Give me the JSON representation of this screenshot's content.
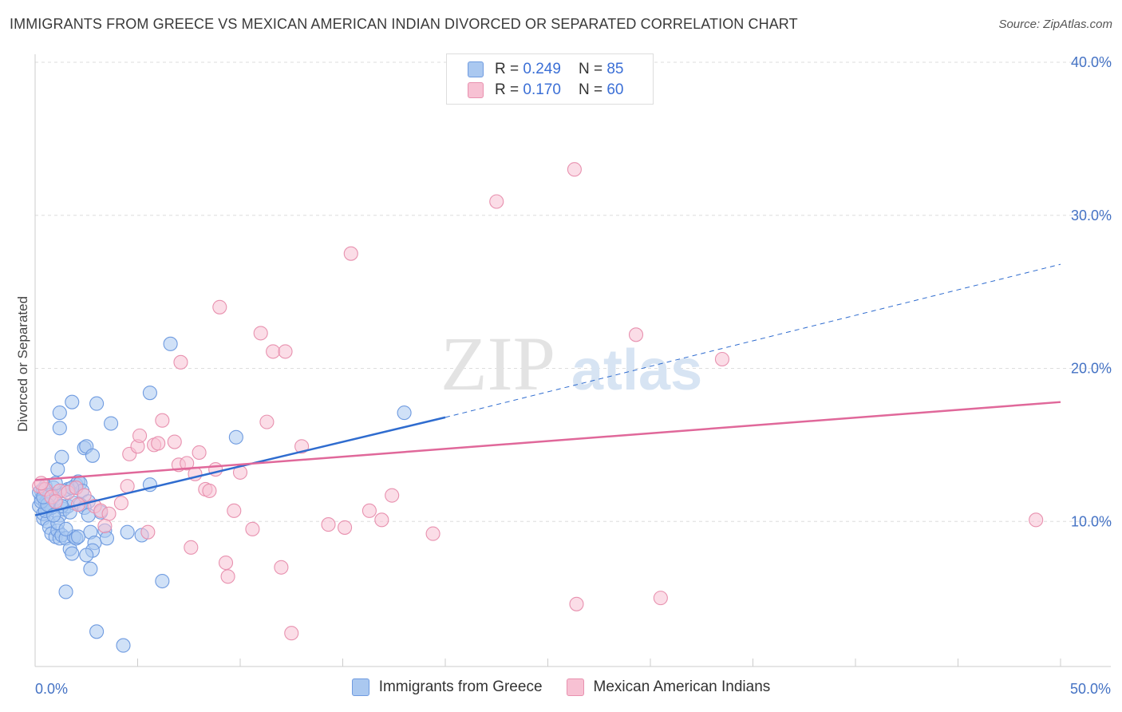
{
  "title": "IMMIGRANTS FROM GREECE VS MEXICAN AMERICAN INDIAN DIVORCED OR SEPARATED CORRELATION CHART",
  "source": "Source: ZipAtlas.com",
  "watermark": {
    "zip": "ZIP",
    "atlas": "atlas"
  },
  "legend": {
    "rows": [
      {
        "r_label": "R = ",
        "r_value": "0.249",
        "n_label": "N = ",
        "n_value": "85",
        "fill": "#aac8f0",
        "stroke": "#6f9be0"
      },
      {
        "r_label": "R = ",
        "r_value": "0.170",
        "n_label": "N = ",
        "n_value": "60",
        "fill": "#f7c1d3",
        "stroke": "#e891af"
      }
    ]
  },
  "chart_data": {
    "type": "scatter",
    "title": "IMMIGRANTS FROM GREECE VS MEXICAN AMERICAN INDIAN DIVORCED OR SEPARATED CORRELATION CHART",
    "xlabel": "",
    "ylabel": "Divorced or Separated",
    "xlim": [
      0,
      50
    ],
    "ylim": [
      0,
      40
    ],
    "x_ticks": [
      {
        "value": 0,
        "label": "0.0%"
      },
      {
        "value": 50,
        "label": "50.0%"
      }
    ],
    "y_ticks": [
      {
        "value": 10,
        "label": "10.0%"
      },
      {
        "value": 20,
        "label": "20.0%"
      },
      {
        "value": 30,
        "label": "30.0%"
      },
      {
        "value": 40,
        "label": "40.0%"
      }
    ],
    "legend_position": "top-center",
    "series": [
      {
        "name": "Immigrants from Greece",
        "color": "#6f9be0",
        "fill": "#aac8f0",
        "line_color": "#2f6ccf",
        "trend": {
          "x0": 0,
          "y0": 10.4,
          "x1": 20,
          "y1": 16.8,
          "dash_to_x": 50,
          "dash_to_y": 26.8
        },
        "points": [
          [
            0.2,
            11.0
          ],
          [
            0.3,
            11.5
          ],
          [
            0.4,
            10.2
          ],
          [
            0.5,
            11.2
          ],
          [
            0.6,
            10.8
          ],
          [
            0.7,
            11.0
          ],
          [
            0.3,
            12.0
          ],
          [
            0.5,
            12.3
          ],
          [
            0.8,
            11.8
          ],
          [
            0.9,
            11.6
          ],
          [
            0.4,
            10.5
          ],
          [
            0.6,
            10.0
          ],
          [
            0.7,
            9.6
          ],
          [
            0.8,
            9.2
          ],
          [
            1.0,
            9.0
          ],
          [
            1.1,
            9.4
          ],
          [
            1.2,
            8.9
          ],
          [
            1.3,
            9.1
          ],
          [
            1.5,
            8.9
          ],
          [
            1.7,
            8.2
          ],
          [
            1.8,
            7.9
          ],
          [
            1.9,
            9.0
          ],
          [
            2.0,
            8.9
          ],
          [
            1.2,
            10.4
          ],
          [
            1.4,
            10.8
          ],
          [
            1.6,
            11.0
          ],
          [
            1.9,
            11.2
          ],
          [
            2.0,
            12.4
          ],
          [
            2.1,
            12.6
          ],
          [
            2.2,
            12.5
          ],
          [
            1.1,
            13.4
          ],
          [
            1.3,
            14.2
          ],
          [
            1.2,
            16.1
          ],
          [
            1.2,
            17.1
          ],
          [
            1.8,
            17.8
          ],
          [
            2.4,
            14.8
          ],
          [
            2.5,
            14.9
          ],
          [
            2.8,
            14.3
          ],
          [
            3.0,
            17.7
          ],
          [
            3.7,
            16.4
          ],
          [
            2.3,
            12.0
          ],
          [
            2.6,
            11.3
          ],
          [
            3.2,
            10.6
          ],
          [
            2.7,
            9.3
          ],
          [
            2.9,
            8.6
          ],
          [
            2.8,
            8.1
          ],
          [
            3.4,
            9.4
          ],
          [
            3.5,
            8.9
          ],
          [
            2.5,
            7.8
          ],
          [
            2.7,
            6.9
          ],
          [
            1.5,
            5.4
          ],
          [
            3.0,
            2.8
          ],
          [
            4.3,
            1.9
          ],
          [
            4.5,
            9.3
          ],
          [
            5.2,
            9.1
          ],
          [
            5.6,
            12.4
          ],
          [
            5.6,
            18.4
          ],
          [
            6.2,
            6.1
          ],
          [
            6.6,
            21.6
          ],
          [
            9.8,
            15.5
          ],
          [
            18.0,
            17.1
          ],
          [
            0.2,
            11.9
          ],
          [
            0.4,
            12.1
          ],
          [
            0.6,
            11.4
          ],
          [
            0.8,
            10.9
          ],
          [
            1.0,
            11.3
          ],
          [
            1.6,
            12.1
          ],
          [
            2.2,
            11.1
          ],
          [
            1.4,
            12.0
          ],
          [
            0.9,
            12.2
          ],
          [
            0.5,
            10.7
          ],
          [
            0.7,
            11.7
          ],
          [
            1.3,
            11.0
          ],
          [
            1.7,
            10.6
          ],
          [
            2.4,
            10.9
          ],
          [
            0.3,
            11.3
          ],
          [
            0.6,
            11.1
          ],
          [
            1.1,
            9.9
          ],
          [
            1.5,
            9.5
          ],
          [
            2.1,
            9.0
          ],
          [
            0.9,
            10.4
          ],
          [
            1.8,
            12.2
          ],
          [
            2.6,
            10.4
          ],
          [
            0.4,
            11.6
          ],
          [
            1.0,
            12.5
          ]
        ]
      },
      {
        "name": "Mexican American Indians",
        "color": "#e891af",
        "fill": "#f7c1d3",
        "line_color": "#e0689a",
        "trend": {
          "x0": 0,
          "y0": 12.7,
          "x1": 50,
          "y1": 17.8
        },
        "points": [
          [
            0.2,
            12.3
          ],
          [
            0.5,
            12.1
          ],
          [
            0.8,
            11.6
          ],
          [
            1.2,
            12.0
          ],
          [
            1.6,
            11.9
          ],
          [
            2.0,
            12.2
          ],
          [
            2.4,
            11.7
          ],
          [
            2.9,
            11.0
          ],
          [
            3.2,
            10.7
          ],
          [
            3.6,
            10.5
          ],
          [
            2.1,
            11.1
          ],
          [
            3.4,
            9.7
          ],
          [
            4.2,
            11.2
          ],
          [
            4.5,
            12.3
          ],
          [
            4.6,
            14.4
          ],
          [
            5.0,
            14.9
          ],
          [
            5.1,
            15.6
          ],
          [
            5.5,
            9.3
          ],
          [
            5.8,
            15.0
          ],
          [
            6.0,
            15.1
          ],
          [
            6.2,
            16.6
          ],
          [
            6.8,
            15.2
          ],
          [
            7.0,
            13.7
          ],
          [
            7.1,
            20.4
          ],
          [
            7.4,
            13.8
          ],
          [
            7.6,
            8.3
          ],
          [
            7.8,
            13.1
          ],
          [
            8.0,
            14.5
          ],
          [
            8.3,
            12.1
          ],
          [
            8.5,
            12.0
          ],
          [
            8.8,
            13.4
          ],
          [
            9.0,
            24.0
          ],
          [
            9.3,
            7.3
          ],
          [
            9.4,
            6.4
          ],
          [
            9.7,
            10.7
          ],
          [
            10.0,
            13.2
          ],
          [
            10.6,
            9.5
          ],
          [
            11.0,
            22.3
          ],
          [
            11.3,
            16.5
          ],
          [
            11.6,
            21.1
          ],
          [
            12.0,
            7.0
          ],
          [
            12.2,
            21.1
          ],
          [
            12.5,
            2.7
          ],
          [
            13.0,
            14.9
          ],
          [
            14.3,
            9.8
          ],
          [
            15.4,
            27.5
          ],
          [
            16.3,
            10.7
          ],
          [
            16.9,
            10.1
          ],
          [
            17.4,
            11.7
          ],
          [
            19.4,
            9.2
          ],
          [
            22.5,
            30.9
          ],
          [
            26.3,
            33.0
          ],
          [
            26.4,
            4.6
          ],
          [
            29.3,
            22.2
          ],
          [
            30.5,
            5.0
          ],
          [
            33.5,
            20.6
          ],
          [
            48.8,
            10.1
          ],
          [
            15.1,
            9.6
          ],
          [
            1.0,
            11.3
          ],
          [
            0.3,
            12.5
          ]
        ]
      }
    ]
  }
}
